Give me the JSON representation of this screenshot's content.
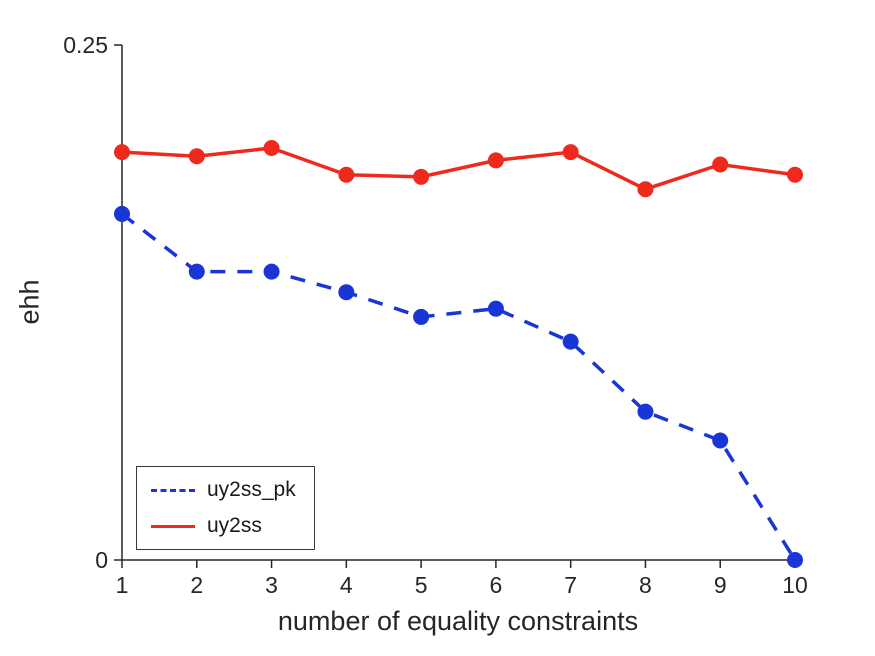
{
  "chart_data": {
    "type": "line",
    "x": [
      1,
      2,
      3,
      4,
      5,
      6,
      7,
      8,
      9,
      10
    ],
    "series": [
      {
        "name": "uy2ss_pk",
        "color": "#1a35d6",
        "style": "dashed",
        "marker": "circle",
        "values": [
          0.168,
          0.14,
          0.14,
          0.13,
          0.118,
          0.122,
          0.106,
          0.072,
          0.058,
          0.0
        ]
      },
      {
        "name": "uy2ss",
        "color": "#f0291d",
        "style": "solid",
        "marker": "circle",
        "values": [
          0.198,
          0.196,
          0.2,
          0.187,
          0.186,
          0.194,
          0.198,
          0.18,
          0.192,
          0.187
        ]
      }
    ],
    "title": "",
    "xlabel": "number of equality constraints",
    "ylabel": "ehh",
    "xlim": [
      1,
      10
    ],
    "ylim": [
      0,
      0.25
    ],
    "xticks": [
      1,
      2,
      3,
      4,
      5,
      6,
      7,
      8,
      9,
      10
    ],
    "xtick_labels": [
      "1",
      "2",
      "3",
      "4",
      "5",
      "6",
      "7",
      "8",
      "9",
      "10"
    ],
    "yticks": [
      0,
      0.25
    ],
    "ytick_labels": [
      "0",
      "0.25"
    ],
    "grid": false,
    "legend_position": "bottom-left",
    "axis_color": "#262626"
  }
}
